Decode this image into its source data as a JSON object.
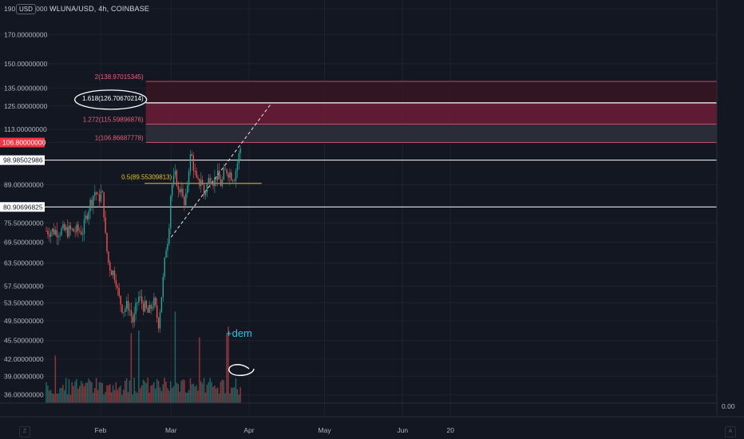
{
  "header": {
    "symbol": "WLUNA/USD, 4h, COINBASE",
    "currency": "USD"
  },
  "colors": {
    "background": "#131722",
    "up": "#26a69a",
    "down": "#ef5350",
    "fib_zone": "#7a1e3a",
    "fib_text": "#ef5f7b",
    "golden": "#e0c23a",
    "white": "#ffffff",
    "price_label": "#f23645"
  },
  "chart_data": {
    "type": "candlestick",
    "title": "",
    "symbol": "WLUNA/USD",
    "interval": "4h",
    "exchange": "COINBASE",
    "price_scale": "log",
    "ylim": [
      33,
      192
    ],
    "y_tick_labels": [
      "190.00000000",
      "170.00000000",
      "150.00000000",
      "135.00000000",
      "125.00000000",
      "113.00000000",
      "106.80000000",
      "98.98502986",
      "89.00000000",
      "80.90696825",
      "75.50000000",
      "69.50000000",
      "63.50000000",
      "57.50000000",
      "53.50000000",
      "49.50000000",
      "45.50000000",
      "42.00000000",
      "39.00000000",
      "36.00000000"
    ],
    "x_tick_labels": [
      "Feb",
      "Mar",
      "Apr",
      "May",
      "Jun",
      "20"
    ],
    "last_price": "106.80000000",
    "series": [
      {
        "x": "Jan 25",
        "close": 73
      },
      {
        "x": "Jan 27",
        "close": 80
      },
      {
        "x": "Jan 29",
        "close": 85
      },
      {
        "x": "Jan 30",
        "close": 87
      },
      {
        "x": "Jan 31",
        "close": 83
      },
      {
        "x": "Feb 1",
        "close": 86
      },
      {
        "x": "Feb 2",
        "close": 84
      },
      {
        "x": "Feb 3",
        "close": 70
      },
      {
        "x": "Feb 4",
        "close": 64
      },
      {
        "x": "Feb 5",
        "close": 62
      },
      {
        "x": "Feb 7",
        "close": 60
      },
      {
        "x": "Feb 8",
        "close": 55
      },
      {
        "x": "Feb 10",
        "close": 52
      },
      {
        "x": "Feb 12",
        "close": 53
      },
      {
        "x": "Feb 14",
        "close": 49
      },
      {
        "x": "Feb 16",
        "close": 55
      },
      {
        "x": "Feb 18",
        "close": 53
      },
      {
        "x": "Feb 20",
        "close": 51
      },
      {
        "x": "Feb 22",
        "close": 54
      },
      {
        "x": "Feb 24",
        "close": 49
      },
      {
        "x": "Feb 25",
        "close": 54
      },
      {
        "x": "Feb 26",
        "close": 60
      },
      {
        "x": "Feb 27",
        "close": 68
      },
      {
        "x": "Feb 28",
        "close": 72
      },
      {
        "x": "Mar 1",
        "close": 88
      },
      {
        "x": "Mar 3",
        "close": 93
      },
      {
        "x": "Mar 4",
        "close": 85
      },
      {
        "x": "Mar 5",
        "close": 90
      },
      {
        "x": "Mar 6",
        "close": 80
      },
      {
        "x": "Mar 7",
        "close": 84
      },
      {
        "x": "Mar 8",
        "close": 96
      },
      {
        "x": "Mar 9",
        "close": 102
      },
      {
        "x": "Mar 10",
        "close": 96
      },
      {
        "x": "Mar 11",
        "close": 90
      },
      {
        "x": "Mar 12",
        "close": 89
      },
      {
        "x": "Mar 13",
        "close": 92
      },
      {
        "x": "Mar 14",
        "close": 85
      },
      {
        "x": "Mar 15",
        "close": 88
      },
      {
        "x": "Mar 16",
        "close": 91
      },
      {
        "x": "Mar 17",
        "close": 93
      },
      {
        "x": "Mar 18",
        "close": 90
      },
      {
        "x": "Mar 19",
        "close": 93
      },
      {
        "x": "Mar 20",
        "close": 91
      },
      {
        "x": "Mar 21",
        "close": 89
      },
      {
        "x": "Mar 22",
        "close": 93
      },
      {
        "x": "Mar 23",
        "close": 95
      },
      {
        "x": "Mar 24",
        "close": 94
      },
      {
        "x": "Mar 25",
        "close": 93
      },
      {
        "x": "Mar 26",
        "close": 92
      },
      {
        "x": "Mar 27",
        "close": 96
      },
      {
        "x": "Mar 28",
        "close": 101
      },
      {
        "x": "Mar 29",
        "close": 106.8
      }
    ],
    "fib_levels": [
      {
        "label": "2(138.97015345)",
        "price": 138.97015345
      },
      {
        "label": "1.618(126.70670214)",
        "price": 126.70670214
      },
      {
        "label": "1.272(115.59896876)",
        "price": 115.59896876
      },
      {
        "label": "1(106.86687778)",
        "price": 106.86687778
      },
      {
        "label": "0.5(89.55309813)",
        "price": 89.55309813
      }
    ],
    "horizontal_lines": [
      {
        "label": "98.98502986",
        "price": 98.98502986
      },
      {
        "label": "80.90696825",
        "price": 80.90696825
      }
    ],
    "trendline": {
      "from": {
        "x": "Mar 1",
        "price": 71
      },
      "to": {
        "x": "Apr 10",
        "price": 126.7
      }
    },
    "annotations": [
      "+dem"
    ],
    "volume_scale_label": "0.00",
    "nav_buttons": [
      "Z",
      "A"
    ]
  }
}
